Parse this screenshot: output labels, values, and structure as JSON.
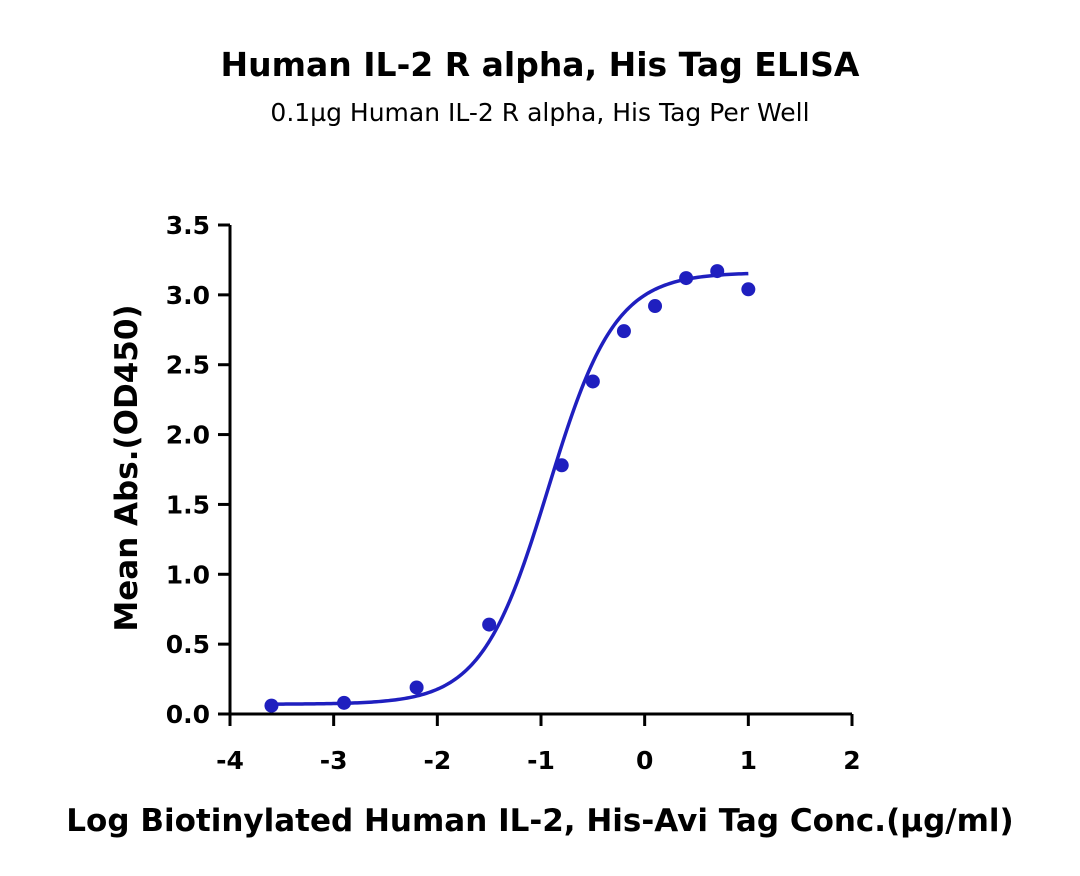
{
  "chart_data": {
    "type": "scatter",
    "title": "Human IL-2 R alpha, His Tag ELISA",
    "subtitle": "0.1µg Human IL-2 R alpha, His Tag Per Well",
    "xlabel": "Log Biotinylated Human IL-2, His-Avi Tag Conc.(µg/ml)",
    "ylabel": "Mean Abs.(OD450)",
    "xlim": [
      -4,
      2
    ],
    "ylim": [
      0,
      3.5
    ],
    "x_ticks": [
      "-4",
      "-3",
      "-2",
      "-1",
      "0",
      "1",
      "2"
    ],
    "y_ticks": [
      "0.0",
      "0.5",
      "1.0",
      "1.5",
      "2.0",
      "2.5",
      "3.0",
      "3.5"
    ],
    "grid": false,
    "color": "#1f1fbf",
    "series": [
      {
        "x": [
          -3.6,
          -2.9,
          -2.2,
          -1.5,
          -0.8,
          -0.5,
          -0.2,
          0.1,
          0.4,
          0.7,
          1.0
        ],
        "y": [
          0.06,
          0.08,
          0.19,
          0.64,
          1.78,
          2.38,
          2.74,
          2.92,
          3.12,
          3.17,
          3.04
        ],
        "fit_curve": {
          "model": "4PL",
          "bottom": 0.07,
          "top": 3.16,
          "log_ec50": -0.93,
          "hill": 1.35,
          "x_range": [
            -3.6,
            1.0
          ]
        }
      }
    ]
  }
}
